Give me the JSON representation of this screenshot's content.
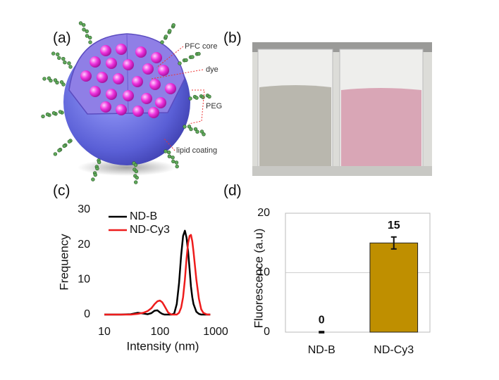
{
  "panels": [
    "(a)",
    "(b)",
    "(c)",
    "(d)"
  ],
  "diagram": {
    "labels": [
      "PFC core",
      "dye",
      "PEG",
      "lipid coating"
    ]
  },
  "chart_data": [
    {
      "type": "line",
      "xlabel": "Intensity (nm)",
      "ylabel": "Frequency",
      "xscale": "log",
      "xlim": [
        10,
        1000
      ],
      "xticks": [
        10,
        100,
        1000
      ],
      "ylim": [
        0,
        30
      ],
      "yticks": [
        0,
        10,
        20,
        30
      ],
      "legend": "upper left",
      "x": [
        10,
        20,
        30,
        40,
        50,
        60,
        70,
        80,
        90,
        100,
        110,
        120,
        140,
        160,
        180,
        200,
        220,
        240,
        260,
        280,
        300,
        320,
        340,
        360,
        380,
        400,
        450,
        500,
        550,
        600,
        700,
        800
      ],
      "series": [
        {
          "name": "ND-B",
          "color": "#000000",
          "values": [
            0,
            0,
            0.1,
            0.5,
            0.3,
            0.1,
            0.4,
            1.1,
            1.2,
            0.6,
            0.2,
            0,
            0,
            0,
            0.3,
            3,
            9,
            17,
            22.5,
            24,
            22,
            18,
            13,
            8,
            5,
            3,
            0.8,
            0.2,
            0,
            0,
            0,
            0
          ]
        },
        {
          "name": "ND-Cy3",
          "color": "#ee1c1c",
          "values": [
            0,
            0,
            0,
            0.2,
            0.5,
            1,
            1.8,
            3,
            3.8,
            4,
            3.5,
            2.5,
            0.6,
            0,
            0,
            0,
            0.5,
            2,
            5,
            10,
            16,
            20.5,
            22.5,
            22.8,
            21,
            18,
            10,
            4.5,
            1.5,
            0.5,
            0,
            0
          ]
        }
      ]
    },
    {
      "type": "bar",
      "ylabel": "Fluorescence (a.u)",
      "categories": [
        "ND-B",
        "ND-Cy3"
      ],
      "values": [
        0,
        15
      ],
      "errors": [
        0.1,
        1
      ],
      "color": "#bf8f00",
      "ylim": [
        0,
        20
      ],
      "yticks": [
        0,
        10,
        20
      ],
      "grid": true
    }
  ]
}
